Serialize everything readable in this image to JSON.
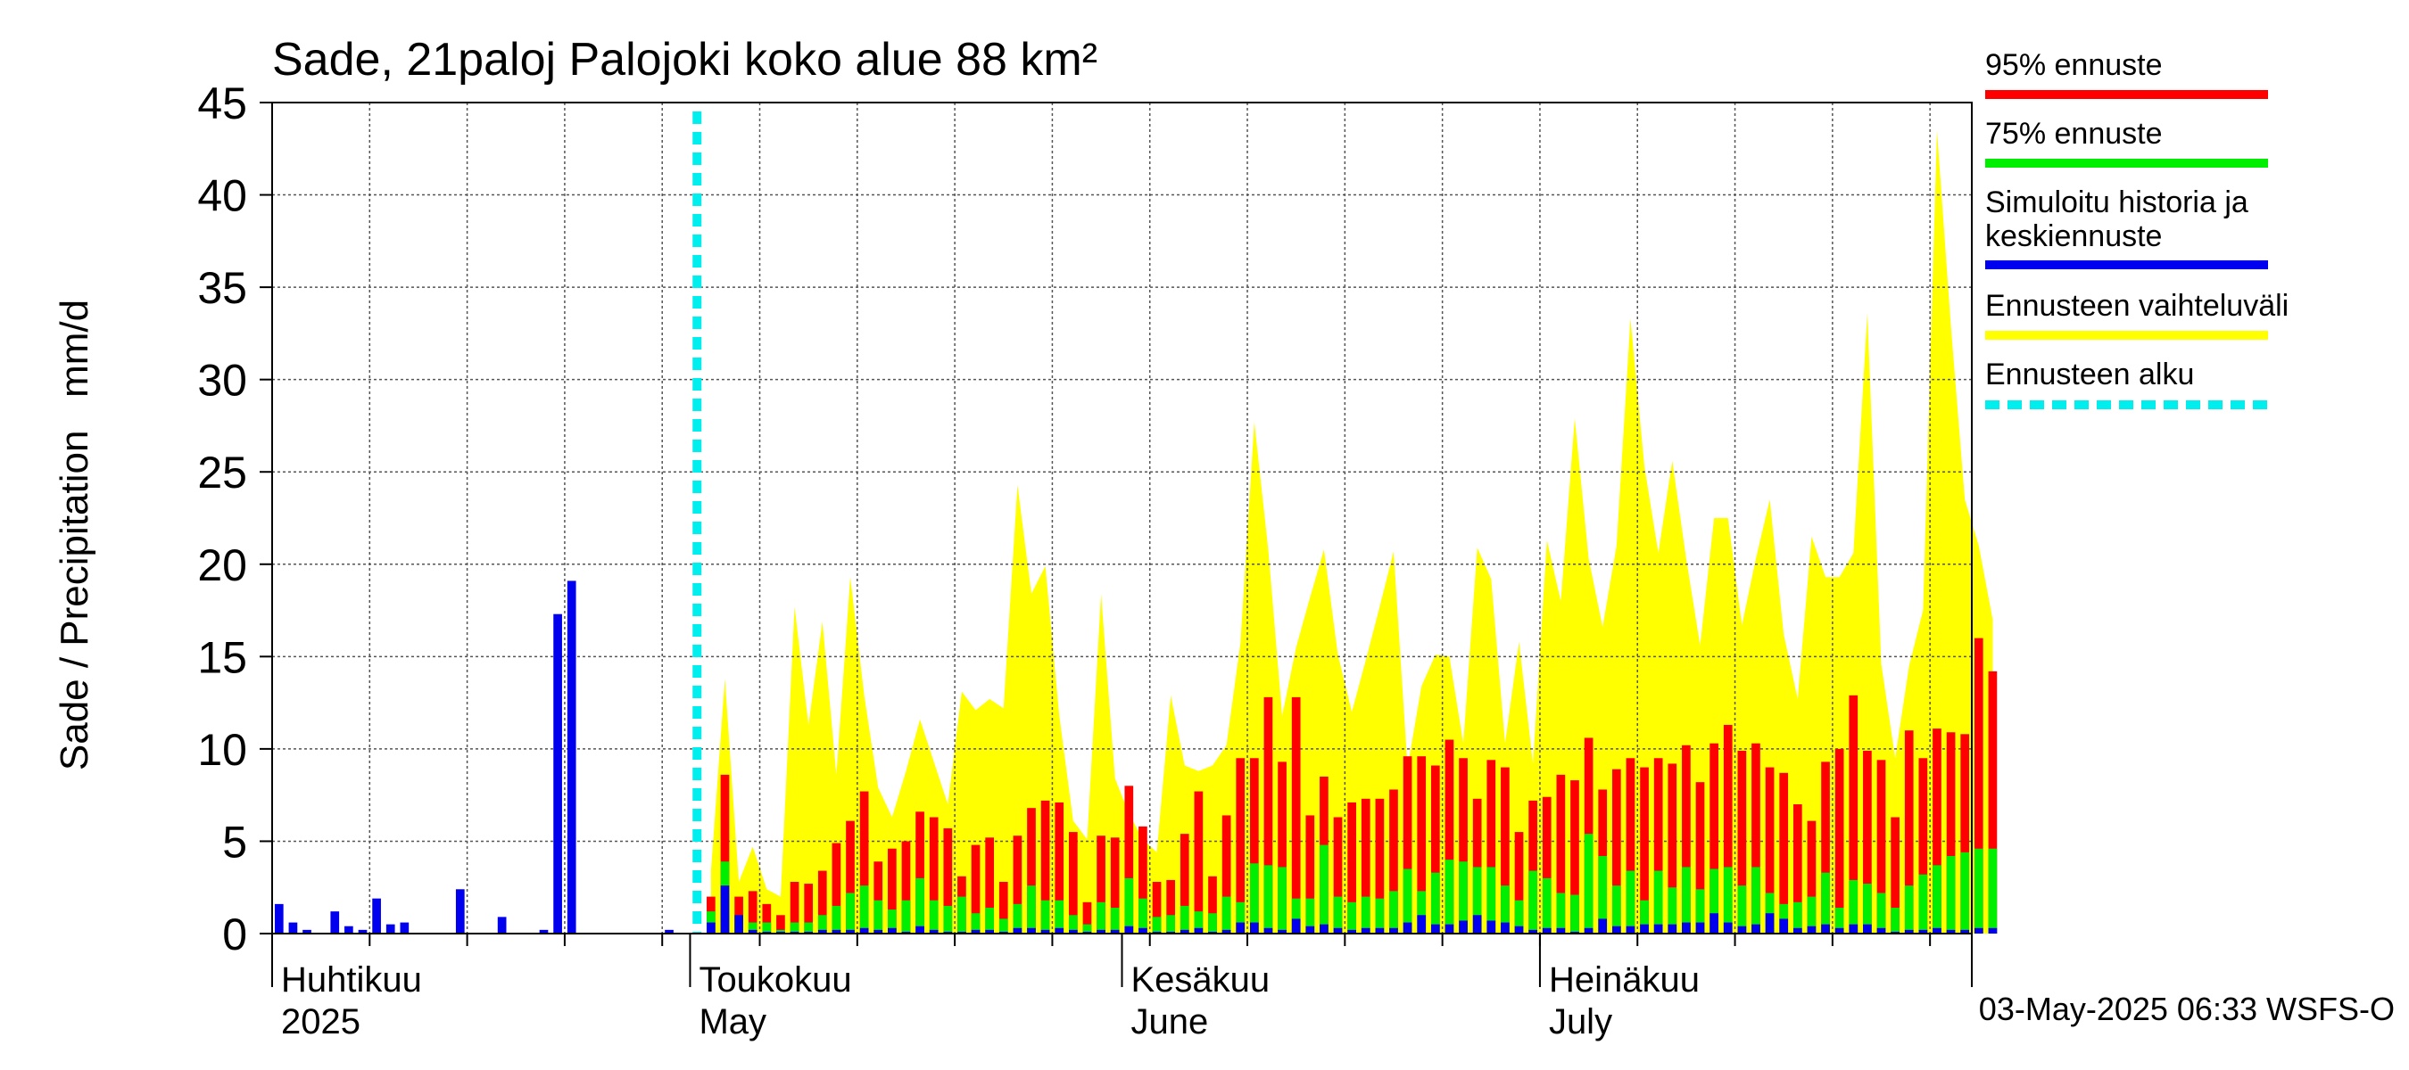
{
  "chart_data": {
    "type": "bar",
    "title": "Sade, 21paloj Palojoki koko alue 88 km²",
    "ylabel": "Sade / Precipitation   mm/d",
    "ylim": [
      0,
      45
    ],
    "yticks": [
      0,
      5,
      10,
      15,
      20,
      25,
      30,
      35,
      40,
      45
    ],
    "x_start": "2025-04-01",
    "x_end": "2025-07-31",
    "forecast_start": "2025-05-02",
    "month_labels": [
      {
        "fi": "Huhtikuu",
        "en": "2025",
        "date": "2025-04-01"
      },
      {
        "fi": "Toukokuu",
        "en": "May",
        "date": "2025-05-01"
      },
      {
        "fi": "Kesäkuu",
        "en": "June",
        "date": "2025-06-01"
      },
      {
        "fi": "Heinäkuu",
        "en": "July",
        "date": "2025-07-01"
      }
    ],
    "legend_placement": "right",
    "legend": [
      {
        "label": "95% ennuste",
        "color": "#ff0000",
        "style": "solid"
      },
      {
        "label": "75% ennuste",
        "color": "#00ee00",
        "style": "solid"
      },
      {
        "label": "Simuloitu historia ja keskiennuste",
        "color": "#0000ee",
        "style": "solid"
      },
      {
        "label": "Ennusteen vaihteluväli",
        "color": "#ffff00",
        "style": "solid"
      },
      {
        "label": "Ennusteen alku",
        "color": "#00eeee",
        "style": "dashed"
      }
    ],
    "history": {
      "start": "2025-04-01",
      "values": [
        1.6,
        0.6,
        0.2,
        0,
        1.2,
        0.4,
        0.2,
        1.9,
        0.5,
        0.6,
        0,
        0,
        0,
        2.4,
        0,
        0,
        0.9,
        0,
        0,
        0.2,
        17.3,
        19.1,
        0,
        0,
        0,
        0,
        0,
        0,
        0.2,
        0,
        0,
        0,
        2.1
      ]
    },
    "forecast": {
      "start": "2025-05-02",
      "range_max": [
        3.4,
        13.8,
        2.8,
        4.7,
        2.4,
        2.0,
        17.7,
        11.3,
        16.9,
        8.6,
        19.3,
        12.9,
        7.9,
        6.3,
        8.8,
        11.6,
        9.3,
        7.0,
        13.1,
        12.1,
        12.7,
        12.2,
        24.3,
        18.4,
        19.9,
        11.8,
        6.1,
        5.1,
        18.4,
        8.4,
        6.5,
        5.1,
        4.4,
        12.9,
        9.1,
        8.8,
        9.1,
        10.2,
        15.7,
        27.7,
        20.8,
        11.8,
        15.5,
        18.2,
        20.8,
        15.1,
        12.0,
        14.8,
        17.7,
        20.7,
        9.0,
        13.4,
        15.1,
        15.0,
        10.3,
        20.9,
        19.2,
        10.3,
        15.8,
        9.2,
        21.3,
        18.0,
        27.9,
        20.3,
        16.6,
        21.0,
        33.3,
        25.3,
        20.6,
        25.6,
        20.3,
        15.6,
        22.5,
        22.5,
        16.7,
        20.3,
        23.5,
        16.2,
        12.7,
        21.5,
        19.3,
        19.3,
        20.6,
        33.6,
        14.6,
        9.5,
        14.5,
        17.5,
        43.5,
        32.9,
        23.5,
        21.0,
        17.0
      ],
      "p95": [
        2.0,
        8.6,
        2.0,
        2.3,
        1.6,
        1.0,
        2.8,
        2.7,
        3.4,
        4.9,
        6.1,
        7.7,
        3.9,
        4.6,
        5.0,
        6.6,
        6.3,
        5.7,
        3.1,
        4.8,
        5.2,
        2.8,
        5.3,
        6.8,
        7.2,
        7.1,
        5.5,
        1.7,
        5.3,
        5.2,
        8.0,
        5.8,
        2.8,
        2.9,
        5.4,
        7.7,
        3.1,
        6.4,
        9.5,
        9.5,
        12.8,
        9.3,
        12.8,
        6.4,
        8.5,
        6.3,
        7.1,
        7.3,
        7.3,
        7.8,
        9.6,
        9.6,
        9.1,
        10.5,
        9.5,
        7.3,
        9.4,
        9.0,
        5.5,
        7.2,
        7.4,
        8.6,
        8.3,
        10.6,
        7.8,
        8.9,
        9.5,
        9.0,
        9.5,
        9.2,
        10.2,
        8.2,
        10.3,
        11.3,
        9.9,
        10.3,
        9.0,
        8.7,
        7.0,
        6.1,
        9.3,
        10.0,
        12.9,
        9.9,
        9.4,
        6.3,
        11.0,
        9.5,
        11.1,
        10.9,
        10.8,
        16.0,
        14.2
      ],
      "p75": [
        1.2,
        3.9,
        0.6,
        0.6,
        0.6,
        0.2,
        0.6,
        0.6,
        1.0,
        1.5,
        2.2,
        2.6,
        1.8,
        1.3,
        1.8,
        3.0,
        1.8,
        1.5,
        2.0,
        1.1,
        1.4,
        0.8,
        1.6,
        2.6,
        1.8,
        1.8,
        1.0,
        0.5,
        1.7,
        1.4,
        3.0,
        1.9,
        0.9,
        1.0,
        1.5,
        1.2,
        1.1,
        2.0,
        1.7,
        3.8,
        3.7,
        3.6,
        1.9,
        1.9,
        4.8,
        2.0,
        1.7,
        2.0,
        1.9,
        2.3,
        3.5,
        2.3,
        3.3,
        4.0,
        3.9,
        3.6,
        3.6,
        2.6,
        1.8,
        3.4,
        3.0,
        2.2,
        2.1,
        5.4,
        4.2,
        2.6,
        3.4,
        1.8,
        3.4,
        2.5,
        3.6,
        2.4,
        3.5,
        3.6,
        2.6,
        3.6,
        2.2,
        1.6,
        1.7,
        2.0,
        3.3,
        1.4,
        2.9,
        2.7,
        2.2,
        1.4,
        2.6,
        3.2,
        3.7,
        4.2,
        4.4,
        4.6,
        4.6
      ],
      "median": [
        0.6,
        2.6,
        1.0,
        0.2,
        0.1,
        0.1,
        0.1,
        0.1,
        0.2,
        0.2,
        0.2,
        0.3,
        0.2,
        0.3,
        0.1,
        0.4,
        0.2,
        0.1,
        0.1,
        0.2,
        0.2,
        0.1,
        0.3,
        0.3,
        0.2,
        0.3,
        0.2,
        0.1,
        0.2,
        0.2,
        0.4,
        0.3,
        0.1,
        0.1,
        0.2,
        0.3,
        0.1,
        0.2,
        0.6,
        0.6,
        0.3,
        0.2,
        0.8,
        0.4,
        0.5,
        0.3,
        0.2,
        0.3,
        0.3,
        0.3,
        0.6,
        1.0,
        0.5,
        0.5,
        0.7,
        1.0,
        0.7,
        0.6,
        0.4,
        0.2,
        0.3,
        0.3,
        0.1,
        0.3,
        0.8,
        0.4,
        0.4,
        0.5,
        0.5,
        0.5,
        0.6,
        0.6,
        1.1,
        0.6,
        0.4,
        0.5,
        1.1,
        0.8,
        0.3,
        0.4,
        0.5,
        0.3,
        0.5,
        0.5,
        0.3,
        0.1,
        0.2,
        0.2,
        0.3,
        0.2,
        0.2,
        0.3,
        0.3
      ]
    }
  },
  "footer": {
    "timestamp": "03-May-2025 06:33 WSFS-O"
  }
}
